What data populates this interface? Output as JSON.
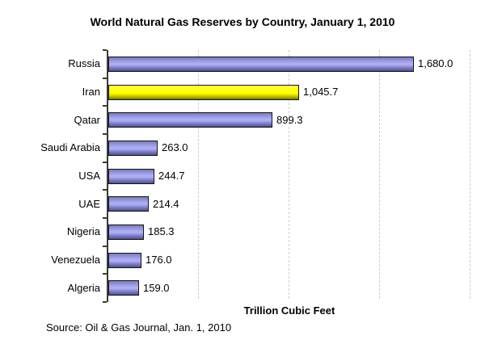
{
  "chart_data": {
    "type": "bar",
    "orientation": "horizontal",
    "title": "World Natural Gas Reserves by Country, January 1, 2010",
    "xlabel": "Trillion Cubic Feet",
    "ylabel": "",
    "source_note": "Source: Oil & Gas Journal, Jan. 1, 2010",
    "categories": [
      "Russia",
      "Iran",
      "Qatar",
      "Saudi Arabia",
      "USA",
      "UAE",
      "Nigeria",
      "Venezuela",
      "Algeria"
    ],
    "values": [
      1680.0,
      1045.7,
      899.3,
      263.0,
      244.7,
      214.4,
      185.3,
      176.0,
      159.0
    ],
    "value_labels": [
      "1,680.0",
      "1,045.7",
      "899.3",
      "263.0",
      "244.7",
      "214.4",
      "185.3",
      "176.0",
      "159.0"
    ],
    "xlim": [
      0,
      2000
    ],
    "grid_step": 500,
    "grid": "vertical-dashed",
    "legend": "none",
    "highlight_index": 1,
    "colors": {
      "bar_default": "#9999E6",
      "bar_default_top": "#7B7BBC",
      "bar_default_mid": "#ADADF5",
      "bar_default_lower": "#8080C8",
      "bar_default_bottom": "#4E4E8C",
      "bar_highlight": "#FFFF00",
      "bar_highlight_top": "#FFFF55",
      "bar_highlight_mid": "#FFFF00",
      "bar_highlight_lower": "#CFCF00",
      "bar_highlight_bottom": "#787800",
      "bar_border": "#141414",
      "gridline": "#CCCCCC",
      "axis": "#3A3A3A",
      "background": "#FFFFFF",
      "text": "#000000"
    }
  }
}
